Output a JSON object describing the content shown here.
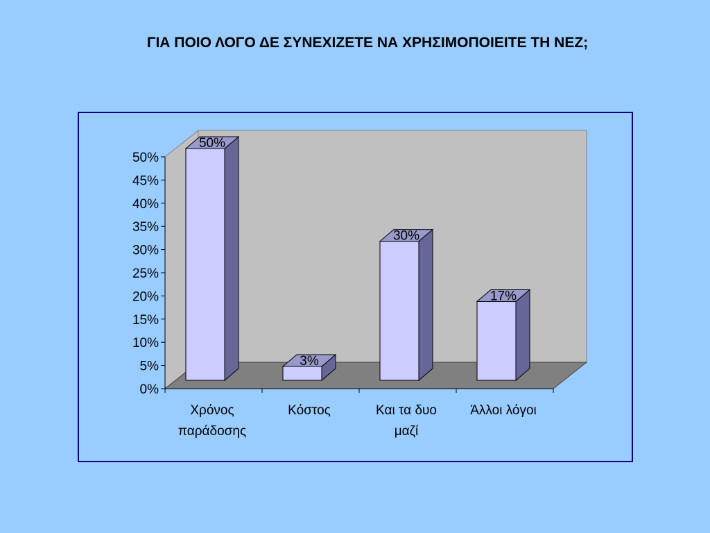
{
  "slide": {
    "title": "ΓΙΑ ΠΟΙΟ ΛΟΓΟ ΔΕ ΣΥΝΕΧΙΖΕΤΕ ΝΑ ΧΡΗΣΙΜΟΠΟΙΕΙΤΕ ΤΗ ΝΕΖ;"
  },
  "chart_data": {
    "type": "bar",
    "title": "ΓΙΑ ΠΟΙΟ ΛΟΓΟ ΔΕ ΣΥΝΕΧΙΖΕΤΕ ΝΑ ΧΡΗΣΙΜΟΠΟΙΕΙΤΕ ΤΗ ΝΕΖ;",
    "categories": [
      [
        "Χρόνος",
        "παράδοσης"
      ],
      [
        "Κόστος"
      ],
      [
        "Και τα δυο",
        "μαζί"
      ],
      [
        "Άλλοι λόγοι"
      ]
    ],
    "values": [
      50,
      3,
      30,
      17
    ],
    "data_labels": [
      "50%",
      "3%",
      "30%",
      "17%"
    ],
    "y_ticks": [
      "0%",
      "5%",
      "10%",
      "15%",
      "20%",
      "25%",
      "30%",
      "35%",
      "40%",
      "45%",
      "50%"
    ],
    "ylim": [
      0,
      50
    ],
    "grid": false,
    "style": "3d-column",
    "colors": {
      "background": "#99ccff",
      "wall": "#c0c0c0",
      "floor": "#808080",
      "bar_front": "#ccccff",
      "bar_top": "#9999cc",
      "bar_side": "#666699",
      "frame": "#000080"
    }
  }
}
